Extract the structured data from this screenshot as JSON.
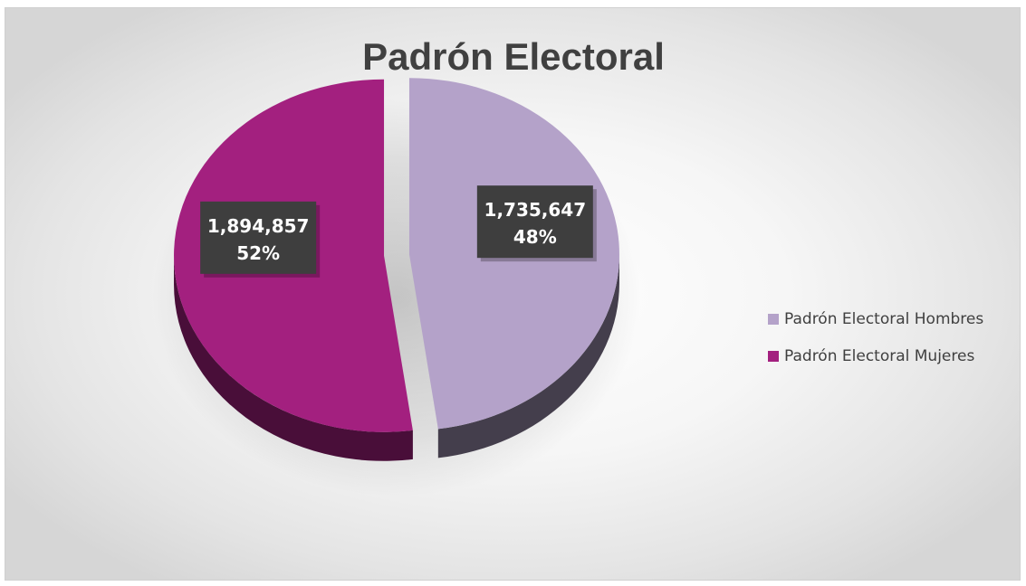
{
  "chart_data": {
    "type": "pie",
    "title": "Padrón Electoral",
    "series": [
      {
        "name": "Padrón Electoral Hombres",
        "value": 1735647,
        "value_label": "1,735,647",
        "percent_label": "48%",
        "color": "#b4a2c9"
      },
      {
        "name": "Padrón Electoral Mujeres",
        "value": 1894857,
        "value_label": "1,894,857",
        "percent_label": "52%",
        "color": "#a3207f"
      }
    ],
    "legend_position": "right",
    "style": "3d-exploded"
  }
}
